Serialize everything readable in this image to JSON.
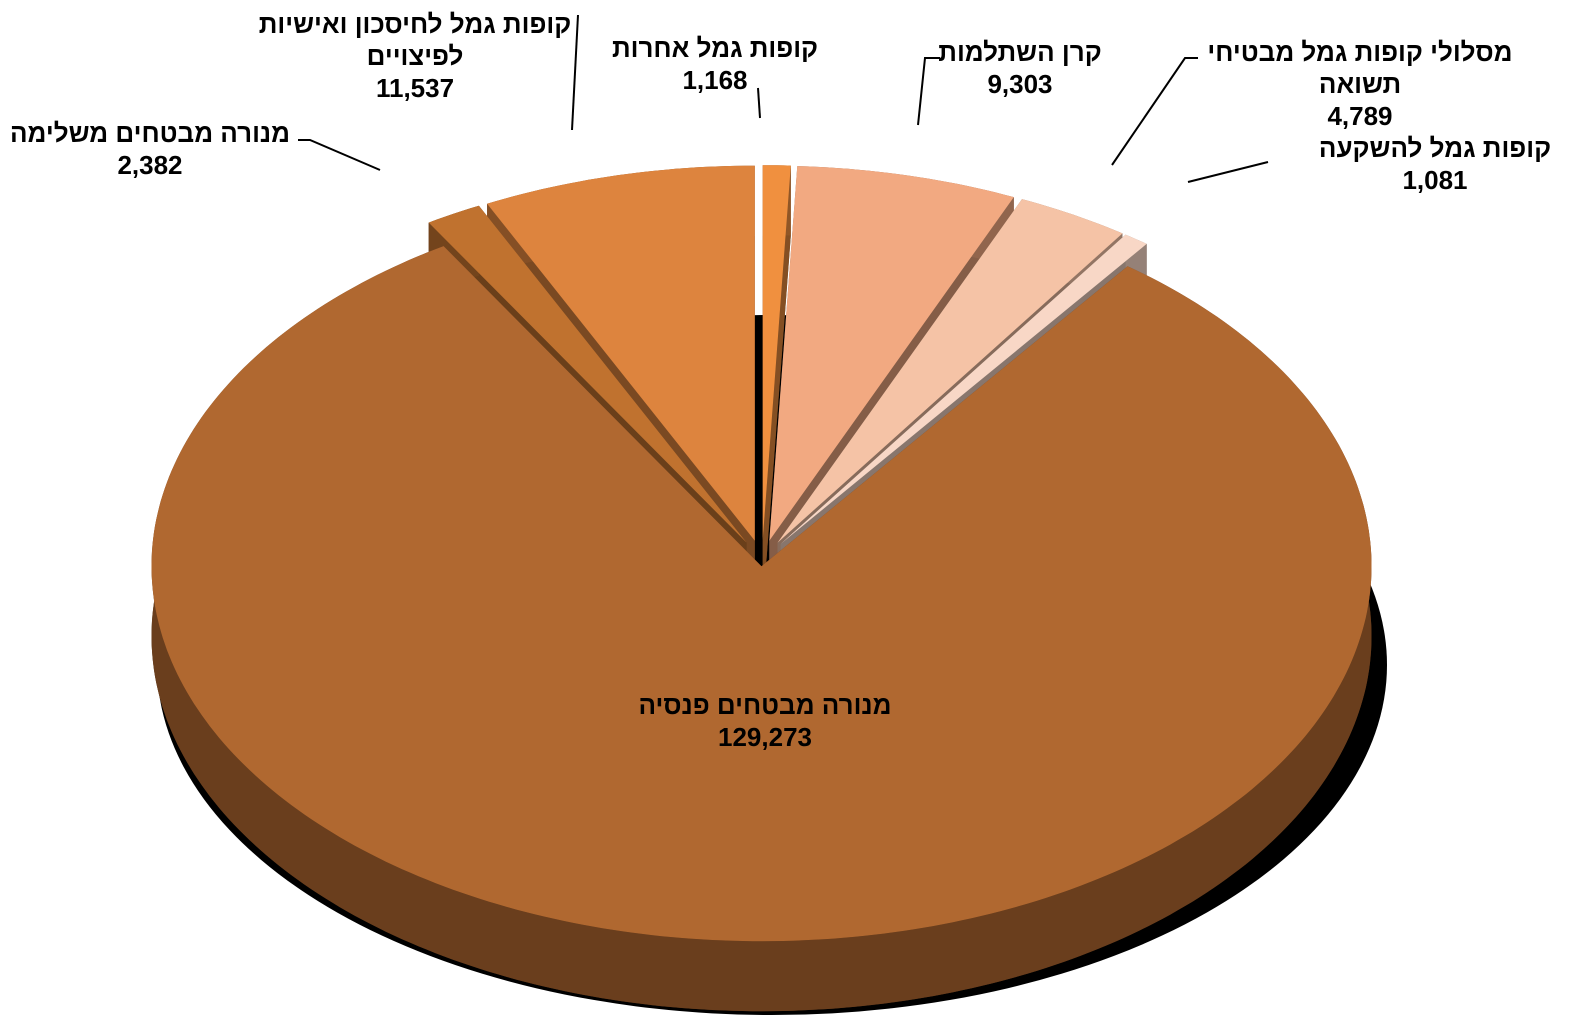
{
  "chart_data": {
    "type": "pie",
    "categories": [
      "קופות גמל אחרות",
      "קרן השתלמות",
      "מסלולי קופות גמל מבטיחי תשואה",
      "קופות גמל להשקעה",
      "מנורה מבטחים פנסיה",
      "מנורה מבטחים משלימה",
      "קופות גמל לחיסכון ואישיות לפיצויים"
    ],
    "values": [
      1168,
      9303,
      4789,
      1081,
      129273,
      2382,
      11537
    ],
    "value_labels": [
      "1,168",
      "9,303",
      "4,789",
      "1,081",
      "129,273",
      "2,382",
      "11,537"
    ],
    "colors": [
      "#f0903f",
      "#f2a981",
      "#f5c3a6",
      "#f8d7c6",
      "#b06830",
      "#c0722f",
      "#dd843e"
    ]
  }
}
